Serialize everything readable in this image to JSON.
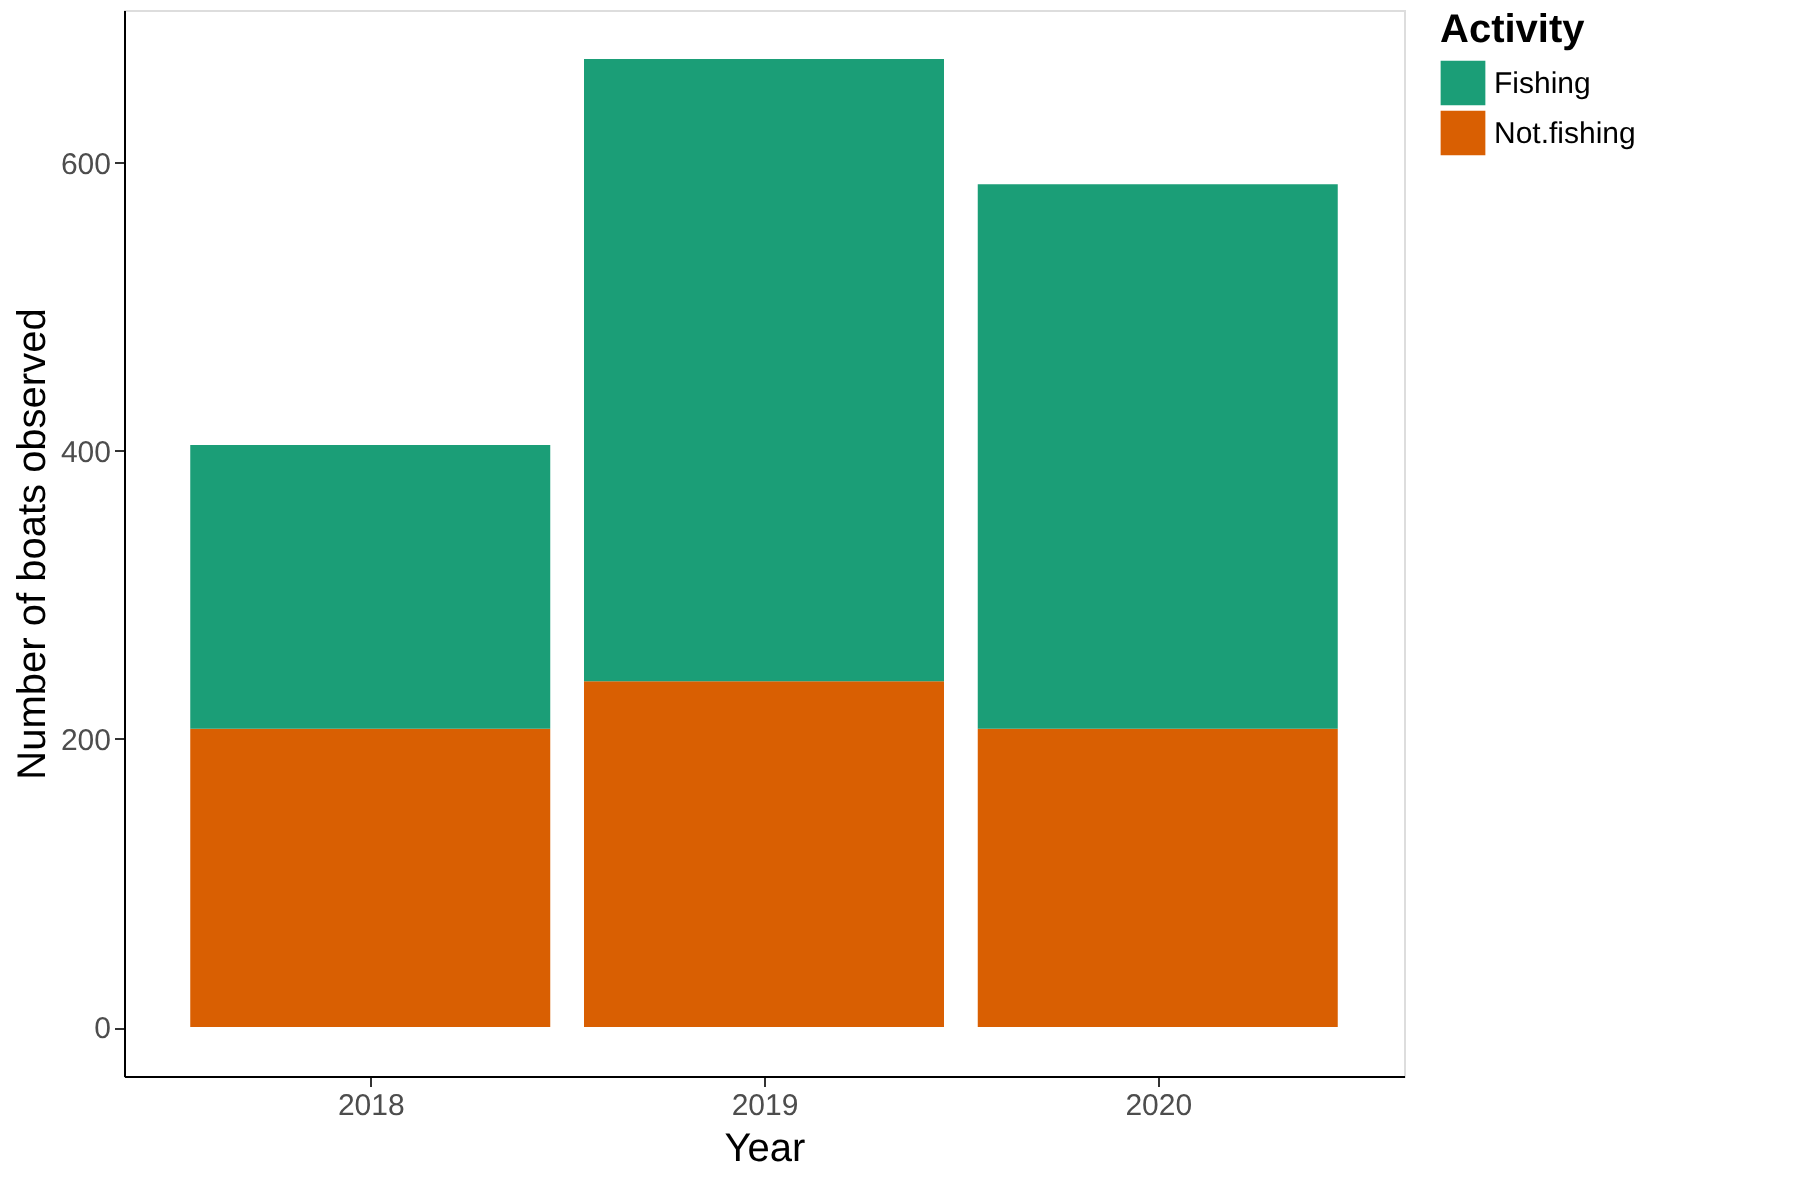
{
  "chart_data": {
    "type": "bar",
    "stacked": true,
    "xlabel": "Year",
    "ylabel": "Number of boats observed",
    "legend_title": "Activity",
    "legend": "right",
    "categories": [
      "2018",
      "2019",
      "2020"
    ],
    "series": [
      {
        "name": "Not.fishing",
        "color": "#d95f02",
        "values": [
          207,
          240,
          207
        ]
      },
      {
        "name": "Fishing",
        "color": "#1b9e77",
        "values": [
          197,
          432,
          378
        ]
      }
    ],
    "ylim": [
      -34,
      706
    ],
    "yticks": [
      0,
      200,
      400,
      600
    ],
    "grid": false
  }
}
